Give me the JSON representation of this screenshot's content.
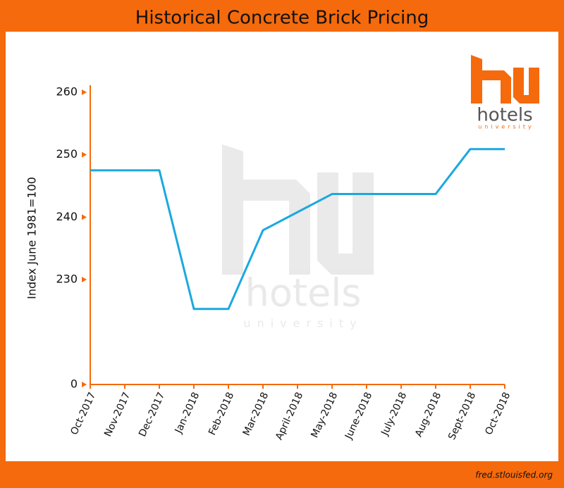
{
  "chart_data": {
    "type": "line",
    "title": "Historical Concrete Brick Pricing",
    "ylabel": "Index June 1981=100",
    "categories": [
      "Oct-2017",
      "Nov-2017",
      "Dec-2017",
      "Jan-2018",
      "Feb-2018",
      "Mar-2018",
      "April-2018",
      "May-2018",
      "June-2018",
      "July-2018",
      "Aug-2018",
      "Sept-2018",
      "Oct-2018"
    ],
    "series": [
      {
        "name": "Concrete Brick",
        "color": "#1ba8e0",
        "values": [
          247.5,
          247.5,
          247.5,
          225.3,
          225.3,
          237.9,
          240.8,
          243.7,
          243.7,
          243.7,
          243.7,
          250.9,
          250.9
        ]
      }
    ],
    "ylim": [
      0,
      260
    ],
    "ybreak": [
      0,
      213.2
    ],
    "yticks": [
      0,
      230,
      240,
      250,
      260
    ],
    "source": "fred.stlouisfed.org",
    "logo": {
      "name": "hotels",
      "tagline": "university"
    }
  }
}
